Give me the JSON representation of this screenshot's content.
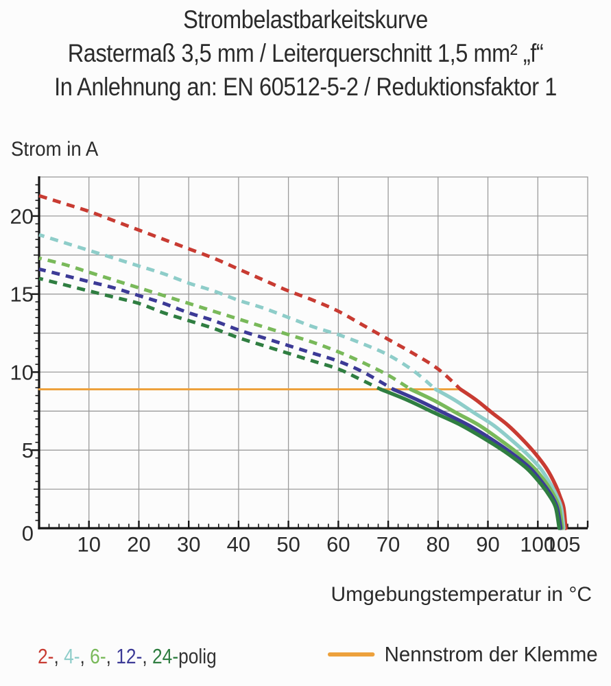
{
  "chart_data": {
    "type": "line",
    "title": "Strombelastbarkeitskurve",
    "subtitle1": "Rastermaß 3,5 mm / Leiterquerschnitt 1,5 mm² „f“",
    "subtitle2": "In Anlehnung an: EN 60512-5-2 / Reduktionsfaktor 1",
    "xlabel": "Umgebungstemperatur in °C",
    "ylabel": "Strom in A",
    "xlim": [
      0,
      110
    ],
    "ylim": [
      0,
      22.5
    ],
    "x_grid_step": 10,
    "y_grid_step": 2.5,
    "x_minor_tick_step": 2,
    "y_minor_tick_step": 0.5,
    "grid": true,
    "x_tick_labels": [
      10,
      20,
      30,
      40,
      50,
      60,
      70,
      80,
      90,
      100,
      105
    ],
    "y_tick_labels": [
      0,
      5,
      10,
      15,
      20
    ],
    "series": [
      {
        "name": "2-polig",
        "color": "#c83b32",
        "dashed": {
          "x": [
            0,
            5,
            10,
            15,
            20,
            25,
            30,
            35,
            40,
            45,
            50,
            55,
            60,
            65,
            70,
            75,
            80,
            84.5
          ],
          "y": [
            21.3,
            20.8,
            20.3,
            19.7,
            19.1,
            18.5,
            17.9,
            17.3,
            16.6,
            15.9,
            15.2,
            14.6,
            13.9,
            13.0,
            12.1,
            11.2,
            10.2,
            8.9
          ]
        },
        "solid": {
          "x": [
            84.5,
            87.7,
            90.8,
            94.0,
            97.2,
            99.7,
            101.8,
            103.5,
            104.5,
            105.2,
            105.6
          ],
          "y": [
            8.9,
            8.2,
            7.4,
            6.6,
            5.6,
            4.7,
            3.8,
            2.8,
            2.0,
            1.3,
            0
          ]
        }
      },
      {
        "name": "4-polig",
        "color": "#8ecdc9",
        "dashed": {
          "x": [
            0,
            5,
            10,
            15,
            20,
            25,
            30,
            35,
            40,
            45,
            50,
            55,
            60,
            65,
            70,
            75,
            79.5
          ],
          "y": [
            18.8,
            18.3,
            17.8,
            17.3,
            16.8,
            16.3,
            15.7,
            15.2,
            14.6,
            14.1,
            13.5,
            12.9,
            12.4,
            11.8,
            11.1,
            10.1,
            8.9
          ]
        },
        "solid": {
          "x": [
            79.5,
            83.4,
            87.2,
            91.1,
            94.9,
            98.0,
            100.6,
            102.6,
            103.9,
            104.7,
            105.2
          ],
          "y": [
            8.9,
            8.2,
            7.4,
            6.6,
            5.6,
            4.7,
            3.8,
            2.8,
            2.0,
            1.3,
            0
          ]
        }
      },
      {
        "name": "6-polig",
        "color": "#79b95a",
        "dashed": {
          "x": [
            0,
            5,
            10,
            15,
            20,
            25,
            30,
            35,
            40,
            45,
            50,
            55,
            60,
            65,
            70,
            74.5
          ],
          "y": [
            17.3,
            16.9,
            16.4,
            15.9,
            15.4,
            14.9,
            14.4,
            13.9,
            13.4,
            12.9,
            12.4,
            11.9,
            11.3,
            10.6,
            9.8,
            8.9
          ]
        },
        "solid": {
          "x": [
            74.5,
            79.1,
            83.6,
            88.2,
            92.7,
            96.4,
            99.4,
            101.9,
            103.4,
            104.3,
            104.9
          ],
          "y": [
            8.9,
            8.2,
            7.4,
            6.6,
            5.6,
            4.7,
            3.8,
            2.8,
            2.0,
            1.3,
            0
          ]
        }
      },
      {
        "name": "12-polig",
        "color": "#3c3a96",
        "dashed": {
          "x": [
            0,
            5,
            10,
            15,
            20,
            25,
            30,
            35,
            40,
            45,
            50,
            55,
            60,
            65,
            71
          ],
          "y": [
            16.6,
            16.2,
            15.8,
            15.4,
            14.9,
            14.4,
            13.8,
            13.3,
            12.7,
            12.2,
            11.7,
            11.2,
            10.7,
            10.0,
            8.9
          ]
        },
        "solid": {
          "x": [
            71,
            76.0,
            81.1,
            86.1,
            91.2,
            95.2,
            98.6,
            101.2,
            102.9,
            103.9,
            104.6
          ],
          "y": [
            8.9,
            8.2,
            7.4,
            6.6,
            5.6,
            4.7,
            3.8,
            2.8,
            2.0,
            1.3,
            0
          ]
        }
      },
      {
        "name": "24-polig",
        "color": "#2f7e41",
        "dashed": {
          "x": [
            0,
            5,
            10,
            15,
            20,
            25,
            30,
            35,
            40,
            45,
            50,
            55,
            60,
            64,
            68.5
          ],
          "y": [
            16.0,
            15.6,
            15.2,
            14.8,
            14.4,
            13.8,
            13.3,
            12.8,
            12.2,
            11.7,
            11.2,
            10.7,
            10.2,
            9.6,
            8.9
          ]
        },
        "solid": {
          "x": [
            68.5,
            73.9,
            79.2,
            84.6,
            90.0,
            94.3,
            97.9,
            100.7,
            102.5,
            103.6,
            104.3
          ],
          "y": [
            8.9,
            8.2,
            7.4,
            6.6,
            5.6,
            4.7,
            3.8,
            2.8,
            2.0,
            1.3,
            0
          ]
        }
      }
    ],
    "nominal_line": {
      "label": "Nennstrom der Klemme",
      "color": "#eda13c",
      "y": 8.9,
      "x_start": 0,
      "x_end": 84.5
    },
    "legend_position": "bottom"
  },
  "legend": {
    "items": [
      {
        "label": "2-",
        "color": "#c83b32"
      },
      {
        "label": "4-",
        "color": "#8ecdc9"
      },
      {
        "label": "6-",
        "color": "#79b95a"
      },
      {
        "label": "12-",
        "color": "#3c3a96"
      },
      {
        "label": "24-",
        "color": "#2f7e41"
      }
    ],
    "separator": ", ",
    "suffix": "polig",
    "text_color": "#333333"
  },
  "style": {
    "grid_color": "#9b9b9b",
    "axis_color": "#161616",
    "text_color": "#2b2b2b"
  }
}
